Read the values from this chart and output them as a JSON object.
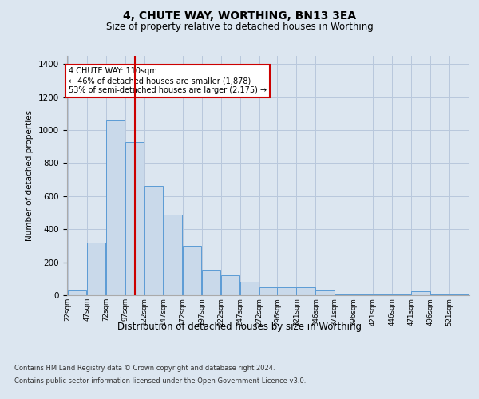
{
  "title1": "4, CHUTE WAY, WORTHING, BN13 3EA",
  "title2": "Size of property relative to detached houses in Worthing",
  "xlabel": "Distribution of detached houses by size in Worthing",
  "ylabel": "Number of detached properties",
  "footnote1": "Contains HM Land Registry data © Crown copyright and database right 2024.",
  "footnote2": "Contains public sector information licensed under the Open Government Licence v3.0.",
  "property_label": "4 CHUTE WAY: 110sqm",
  "annotation_line1": "← 46% of detached houses are smaller (1,878)",
  "annotation_line2": "53% of semi-detached houses are larger (2,175) →",
  "bar_color": "#c9d9ea",
  "bar_edge_color": "#5b9bd5",
  "vline_color": "#cc0000",
  "vline_x": 110,
  "background_color": "#dce6f0",
  "categories": [
    "22sqm",
    "47sqm",
    "72sqm",
    "97sqm",
    "122sqm",
    "147sqm",
    "172sqm",
    "197sqm",
    "222sqm",
    "247sqm",
    "272sqm",
    "296sqm",
    "321sqm",
    "346sqm",
    "371sqm",
    "396sqm",
    "421sqm",
    "446sqm",
    "471sqm",
    "496sqm",
    "521sqm"
  ],
  "bin_starts": [
    22,
    47,
    72,
    97,
    122,
    147,
    172,
    197,
    222,
    247,
    272,
    296,
    321,
    346,
    371,
    396,
    421,
    446,
    471,
    496,
    521
  ],
  "bin_width": 25,
  "values": [
    28,
    320,
    1060,
    930,
    660,
    490,
    300,
    155,
    120,
    80,
    50,
    48,
    48,
    28,
    5,
    5,
    5,
    5,
    25,
    5,
    5
  ],
  "ylim": [
    0,
    1450
  ],
  "yticks": [
    0,
    200,
    400,
    600,
    800,
    1000,
    1200,
    1400
  ],
  "annotation_box_color": "#ffffff",
  "annotation_box_edge": "#cc0000",
  "grid_color": "#b8c8dc"
}
